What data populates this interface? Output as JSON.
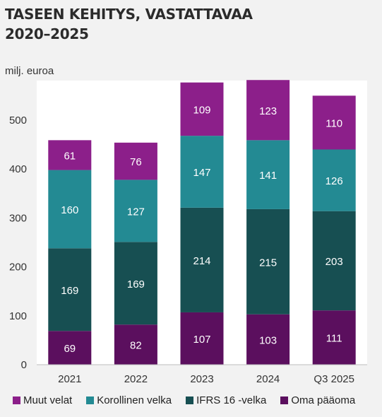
{
  "chart_data": {
    "type": "bar",
    "stacked": true,
    "title_lines": [
      "TASEEN KEHITYS, VASTATTAVAA",
      "2020–2025"
    ],
    "ylabel": "milj. euroa",
    "xlabel": "",
    "categories": [
      "2021",
      "2022",
      "2023",
      "2024",
      "Q3 2025"
    ],
    "ylim": [
      0,
      575
    ],
    "yticks": [
      0,
      100,
      200,
      300,
      400,
      500
    ],
    "grid": false,
    "legend_position": "bottom",
    "series": [
      {
        "name": "Oma pääoma",
        "color": "#5b0f5e",
        "values": [
          69,
          82,
          107,
          103,
          111
        ]
      },
      {
        "name": "IFRS 16 -velka",
        "color": "#174f52",
        "values": [
          169,
          169,
          214,
          215,
          203
        ]
      },
      {
        "name": "Korollinen velka",
        "color": "#238a93",
        "values": [
          160,
          127,
          147,
          141,
          126
        ]
      },
      {
        "name": "Muut velat",
        "color": "#8c1f8a",
        "values": [
          61,
          76,
          109,
          123,
          110
        ]
      }
    ],
    "legend_order": [
      "Muut velat",
      "Korollinen velka",
      "IFRS 16 -velka",
      "Oma pääoma"
    ]
  }
}
